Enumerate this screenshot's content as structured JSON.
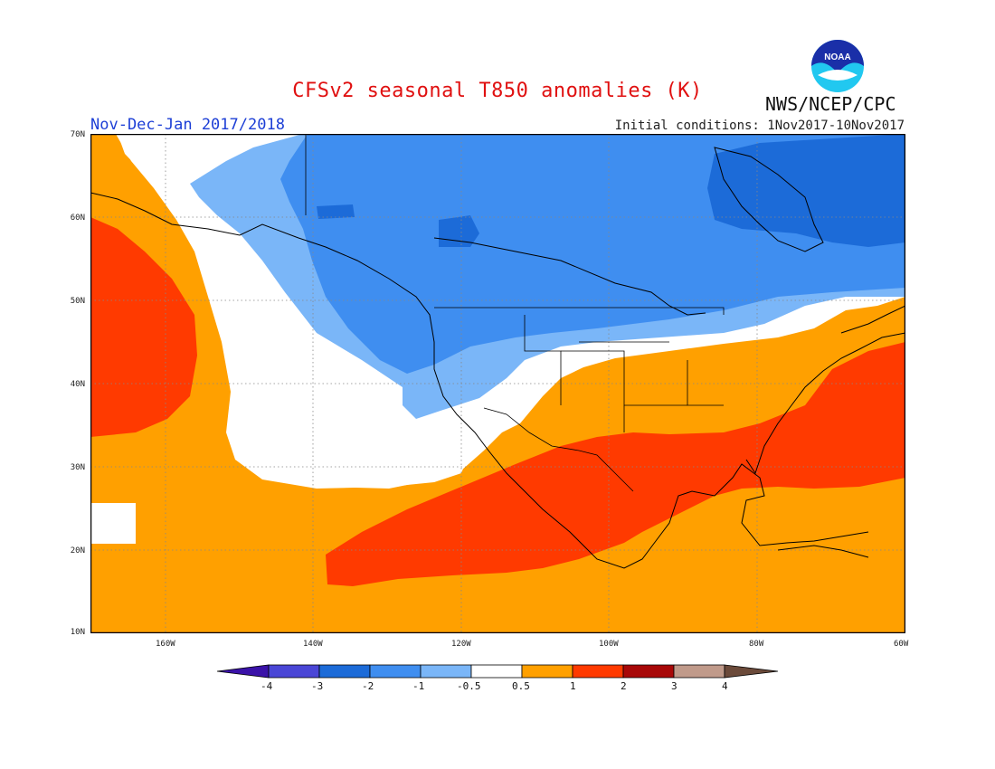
{
  "title": "CFSv2 seasonal T850 anomalies (K)",
  "agency": "NWS/NCEP/CPC",
  "logo_text": "NOAA",
  "period": "Nov-Dec-Jan 2017/2018",
  "initial_conditions": "Initial conditions: 1Nov2017-10Nov2017",
  "lat_labels": [
    "70N",
    "60N",
    "50N",
    "40N",
    "30N",
    "20N",
    "10N"
  ],
  "lon_labels": [
    "160W",
    "140W",
    "120W",
    "100W",
    "80W",
    "60W"
  ],
  "colorbar": {
    "labels": [
      "-4",
      "-3",
      "-2",
      "-1",
      "-0.5",
      "0.5",
      "1",
      "2",
      "3",
      "4"
    ],
    "colors": [
      "#3a12a8",
      "#4a46d6",
      "#1c6bd8",
      "#3f8ef0",
      "#7ab6f8",
      "#ffffff",
      "#ffa000",
      "#ff3a00",
      "#a80808",
      "#c09a8a",
      "#6b4a3a"
    ]
  },
  "colors": {
    "title": "#e01010",
    "period": "#1d3fd6"
  }
}
